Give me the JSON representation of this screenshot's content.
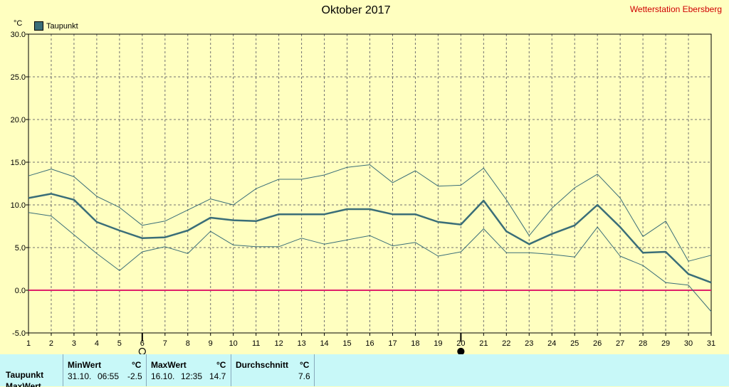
{
  "title": "Oktober 2017",
  "station": "Wetterstation Ebersberg",
  "legend_label": "Taupunkt",
  "unit": "°C",
  "colors": {
    "series": "#3a6e78",
    "zero_line": "#e0206a",
    "grid": "#707070",
    "bg": "#ffffc0"
  },
  "chart_data": {
    "type": "line",
    "x": [
      1,
      2,
      3,
      4,
      5,
      6,
      7,
      8,
      9,
      10,
      11,
      12,
      13,
      14,
      15,
      16,
      17,
      18,
      19,
      20,
      21,
      22,
      23,
      24,
      25,
      26,
      27,
      28,
      29,
      30,
      31
    ],
    "ylim": [
      -5,
      30
    ],
    "yticks": [
      "30.0",
      "25.0",
      "20.0",
      "15.0",
      "10.0",
      "5.0",
      "0.0",
      "-5.0"
    ],
    "ytick_values": [
      30,
      25,
      20,
      15,
      10,
      5,
      0,
      -5
    ],
    "series": [
      {
        "name": "Taupunkt",
        "role": "mean",
        "values": [
          10.8,
          11.3,
          10.6,
          8.0,
          7.0,
          6.1,
          6.2,
          7.0,
          8.5,
          8.2,
          8.1,
          8.9,
          8.9,
          8.9,
          9.5,
          9.5,
          8.9,
          8.9,
          8.0,
          7.7,
          10.5,
          6.9,
          5.4,
          6.6,
          7.6,
          10.0,
          7.4,
          4.4,
          4.5,
          1.9,
          0.9
        ]
      },
      {
        "role": "max",
        "values": [
          13.4,
          14.2,
          13.3,
          11.0,
          9.7,
          7.6,
          8.1,
          9.4,
          10.7,
          10.0,
          11.9,
          13.0,
          13.0,
          13.5,
          14.4,
          14.7,
          12.6,
          14.0,
          12.2,
          12.3,
          14.3,
          10.6,
          6.4,
          9.6,
          12.0,
          13.6,
          10.8,
          6.3,
          8.1,
          3.4,
          4.1
        ]
      },
      {
        "role": "min",
        "values": [
          9.1,
          8.7,
          6.5,
          4.3,
          2.3,
          4.5,
          5.1,
          4.3,
          6.9,
          5.3,
          5.1,
          5.1,
          6.1,
          5.4,
          5.9,
          6.4,
          5.2,
          5.6,
          4.0,
          4.5,
          7.2,
          4.4,
          4.4,
          4.2,
          3.9,
          7.4,
          4.0,
          2.9,
          0.9,
          0.6,
          -2.5
        ]
      }
    ],
    "markers": [
      {
        "x": 6,
        "symbol": "moon-outline"
      },
      {
        "x": 20,
        "symbol": "moon-filled"
      }
    ]
  },
  "footer": {
    "row1": "Taupunkt",
    "row2": "MaxWert",
    "min_header": "MinWert",
    "min_unit": "°C",
    "min_date": "31.10.",
    "min_time": "06:55",
    "min_value": "-2.5",
    "max_header": "MaxWert",
    "max_unit": "°C",
    "max_date": "16.10.",
    "max_time": "12:35",
    "max_value": "14.7",
    "avg_header": "Durchschnitt",
    "avg_unit": "°C",
    "avg_value": "7.6"
  }
}
